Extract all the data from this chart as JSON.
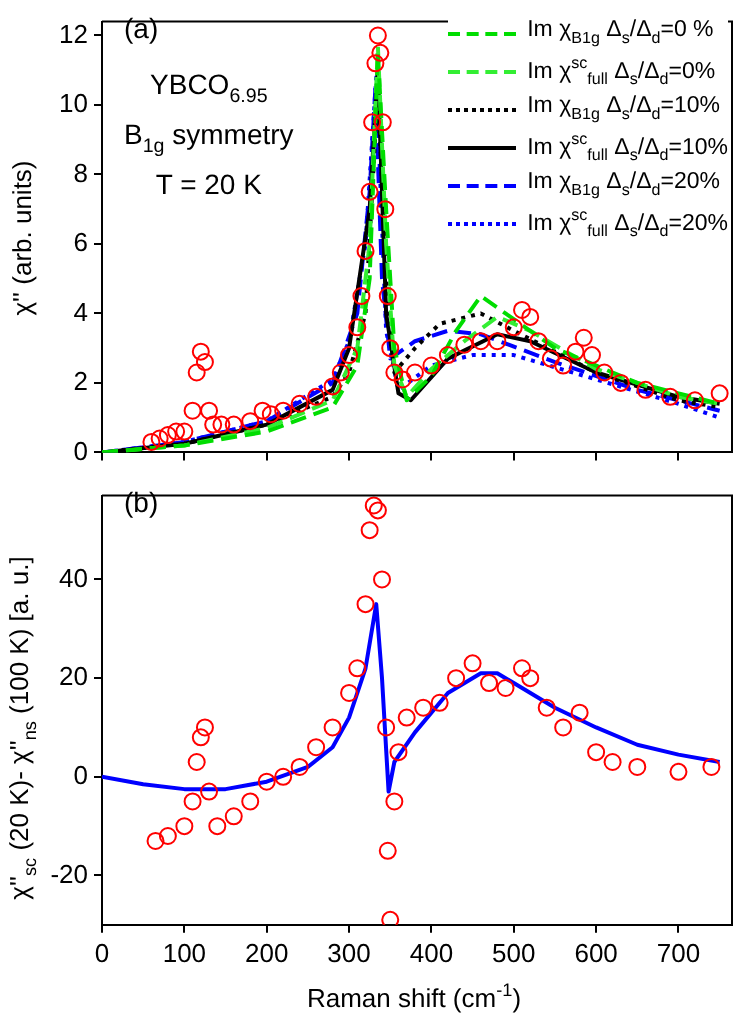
{
  "chart_data": [
    {
      "type": "line",
      "ylabel": "χ'' (arb. units)",
      "annotations": [
        "(a)",
        "YBCO$_{6.95}$",
        "B$_{1g}$ symmetry",
        "T = 20 K"
      ],
      "xlim": [
        0,
        765
      ],
      "xticks": [
        0,
        100,
        200,
        300,
        400,
        500,
        600,
        700
      ],
      "ylim": [
        0,
        12.4
      ],
      "yticks": [
        0,
        2,
        4,
        6,
        8,
        10,
        12
      ],
      "tick_labels": "y",
      "grid": false,
      "legend": "top right",
      "series": [
        {
          "type": "scatter",
          "marker": "circle",
          "color": "#ff0000",
          "x": [
            60,
            70,
            80,
            90,
            100,
            110,
            115,
            120,
            125,
            130,
            135,
            145,
            160,
            180,
            195,
            205,
            220,
            240,
            260,
            280,
            290,
            300,
            310,
            315,
            320,
            325,
            328,
            332,
            335,
            338,
            341,
            344,
            347,
            350,
            355,
            365,
            380,
            400,
            420,
            440,
            460,
            480,
            500,
            510,
            520,
            530,
            545,
            560,
            575,
            585,
            595,
            610,
            630,
            660,
            690,
            720,
            750
          ],
          "values": [
            0.3,
            0.4,
            0.5,
            0.6,
            0.6,
            1.2,
            2.3,
            2.9,
            2.6,
            1.2,
            0.8,
            0.8,
            0.8,
            0.9,
            1.2,
            1.1,
            1.2,
            1.4,
            1.6,
            1.9,
            2.3,
            2.8,
            3.6,
            4.5,
            5.8,
            7.5,
            9.5,
            11.2,
            12.0,
            11.5,
            9.5,
            7,
            4.5,
            3.0,
            2.3,
            2.1,
            2.3,
            2.5,
            2.8,
            3.1,
            3.2,
            3.2,
            3.6,
            4.1,
            3.9,
            3.2,
            2.7,
            2.5,
            2.9,
            3.3,
            2.8,
            2.3,
            2.0,
            1.8,
            1.6,
            1.5,
            1.7
          ]
        },
        {
          "name": "Im χ$_{B1g}$ Δ$_{s}$/Δ$_{d}$=0 %",
          "marker": "none",
          "line_style": "dashed",
          "color": "#00dd00",
          "x": [
            0,
            100,
            200,
            280,
            310,
            325,
            335,
            345,
            355,
            370,
            400,
            430,
            460,
            490,
            550,
            650,
            750
          ],
          "values": [
            0,
            0.2,
            0.6,
            1.3,
            2.5,
            5,
            11.5,
            7,
            3,
            1.5,
            2.2,
            3.5,
            4.5,
            4.0,
            3.0,
            2.0,
            1.4
          ]
        },
        {
          "name": "Im χ$^{sc}$$_{full}$ Δ$_{s}$/Δ$_{d}$=0%",
          "marker": "none",
          "line_style": "dashed",
          "color": "#33ee33",
          "x": [
            0,
            100,
            200,
            280,
            310,
            325,
            335,
            345,
            355,
            370,
            400,
            440,
            480,
            520,
            600,
            700,
            750
          ],
          "values": [
            0,
            0.2,
            0.7,
            1.5,
            3,
            6,
            11.7,
            6,
            2.5,
            1.6,
            2.4,
            3.2,
            3.9,
            3.5,
            2.4,
            1.6,
            1.4
          ]
        },
        {
          "name": "Im χ$_{B1g}$ Δ$_{s}$/Δ$_{d}$=10%",
          "marker": "none",
          "line_style": "dotted",
          "color": "#000000",
          "x": [
            0,
            100,
            200,
            280,
            300,
            320,
            335,
            345,
            355,
            380,
            410,
            460,
            500,
            600,
            700,
            750
          ],
          "values": [
            0,
            0.25,
            0.8,
            1.6,
            2.3,
            4,
            10.5,
            5,
            2.3,
            3,
            3.7,
            4.0,
            3.5,
            2.3,
            1.5,
            1.3
          ]
        },
        {
          "name": "Im χ$^{sc}$$_{full}$ Δ$_{s}$/Δ$_{d}$=10%",
          "marker": "none",
          "line_style": "solid",
          "color": "#000000",
          "x": [
            0,
            100,
            200,
            280,
            300,
            325,
            335,
            345,
            360,
            375,
            420,
            480,
            520,
            600,
            700,
            750
          ],
          "values": [
            0,
            0.25,
            0.8,
            1.8,
            3,
            7,
            11,
            4,
            1.7,
            1.5,
            2.7,
            3.4,
            3.2,
            2.3,
            1.6,
            1.4
          ]
        },
        {
          "name": "Im χ$_{B1g}$ Δ$_{s}$/Δ$_{d}$=20%",
          "marker": "none",
          "line_style": "dashed",
          "color": "#0000ff",
          "x": [
            0,
            100,
            200,
            280,
            310,
            325,
            332,
            340,
            350,
            380,
            420,
            460,
            550,
            650,
            750
          ],
          "values": [
            0,
            0.3,
            0.9,
            2,
            4,
            7.5,
            10.5,
            5,
            2.7,
            3.2,
            3.5,
            3.4,
            2.6,
            1.8,
            1.2
          ]
        },
        {
          "name": "Im χ$^{sc}$$_{full}$ Δ$_{s}$/Δ$_{d}$=20%",
          "marker": "none",
          "line_style": "dotted",
          "color": "#0000ff",
          "x": [
            0,
            100,
            200,
            280,
            300,
            320,
            333,
            345,
            360,
            400,
            450,
            500,
            600,
            700,
            750
          ],
          "values": [
            0,
            0.3,
            0.9,
            2.1,
            3.2,
            6,
            10.8,
            3.5,
            1.8,
            2.5,
            2.8,
            2.8,
            2.1,
            1.4,
            1.0
          ]
        }
      ]
    },
    {
      "type": "line",
      "xlabel": "Raman shift (cm$^{-1}$)",
      "ylabel": "χ''$_{sc}$ (20 K)- χ''$_{ns}$ (100 K) [a. u.]",
      "annotations": [
        "(b)"
      ],
      "xlim": [
        0,
        765
      ],
      "xticks": [
        0,
        100,
        200,
        300,
        400,
        500,
        600,
        700
      ],
      "ylim": [
        -30,
        57
      ],
      "yticks": [
        -20,
        0,
        20,
        40
      ],
      "grid": false,
      "series": [
        {
          "type": "scatter",
          "marker": "circle",
          "color": "#ff0000",
          "x": [
            65,
            80,
            100,
            110,
            115,
            120,
            125,
            130,
            140,
            160,
            180,
            200,
            220,
            240,
            260,
            280,
            300,
            310,
            320,
            325,
            330,
            335,
            340,
            345,
            347,
            350,
            355,
            360,
            370,
            390,
            410,
            430,
            450,
            470,
            490,
            510,
            520,
            540,
            560,
            580,
            600,
            620,
            650,
            700,
            740
          ],
          "values": [
            -13,
            -12,
            -10,
            -5,
            3,
            8,
            10,
            -3,
            -10,
            -8,
            -5,
            -1,
            0,
            2,
            6,
            10,
            17,
            22,
            35,
            50,
            55,
            54,
            40,
            10,
            -15,
            -29,
            -5,
            5,
            12,
            14,
            15,
            20,
            23,
            19,
            18,
            22,
            20,
            14,
            10,
            13,
            5,
            3,
            2,
            1,
            2
          ]
        },
        {
          "marker": "none",
          "line_style": "solid",
          "color": "#0000ff",
          "x": [
            0,
            50,
            100,
            150,
            200,
            250,
            280,
            300,
            320,
            333,
            340,
            348,
            355,
            380,
            420,
            460,
            480,
            500,
            550,
            600,
            650,
            700,
            750
          ],
          "values": [
            0,
            -1.5,
            -2.5,
            -2.5,
            -1,
            2,
            6,
            12,
            22,
            35,
            20,
            -3,
            3,
            9,
            17,
            21,
            21,
            19,
            14,
            10,
            6.5,
            4.5,
            3
          ]
        }
      ]
    }
  ]
}
